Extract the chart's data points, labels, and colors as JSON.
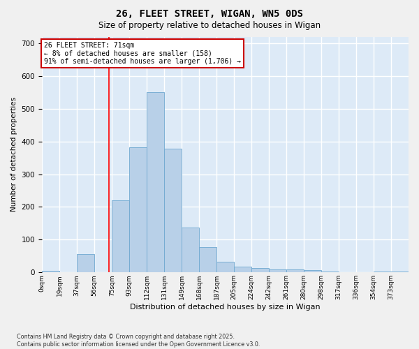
{
  "title1": "26, FLEET STREET, WIGAN, WN5 0DS",
  "title2": "Size of property relative to detached houses in Wigan",
  "xlabel": "Distribution of detached houses by size in Wigan",
  "ylabel": "Number of detached properties",
  "categories": [
    "0sqm",
    "19sqm",
    "37sqm",
    "56sqm",
    "75sqm",
    "93sqm",
    "112sqm",
    "131sqm",
    "149sqm",
    "168sqm",
    "187sqm",
    "205sqm",
    "224sqm",
    "242sqm",
    "261sqm",
    "280sqm",
    "298sqm",
    "317sqm",
    "336sqm",
    "354sqm",
    "373sqm"
  ],
  "values": [
    5,
    0,
    55,
    0,
    220,
    383,
    550,
    378,
    138,
    78,
    33,
    18,
    14,
    10,
    10,
    8,
    3,
    0,
    0,
    3,
    3
  ],
  "bar_color": "#b8d0e8",
  "bar_edge_color": "#6fa8d0",
  "background_color": "#ddeaf7",
  "fig_background_color": "#f0f0f0",
  "grid_color": "#ffffff",
  "red_line_x": 71,
  "bin_width": 18.5,
  "annotation_title": "26 FLEET STREET: 71sqm",
  "annotation_line1": "← 8% of detached houses are smaller (158)",
  "annotation_line2": "91% of semi-detached houses are larger (1,706) →",
  "annotation_box_color": "#cc0000",
  "ylim": [
    0,
    720
  ],
  "yticks": [
    0,
    100,
    200,
    300,
    400,
    500,
    600,
    700
  ],
  "footnote1": "Contains HM Land Registry data © Crown copyright and database right 2025.",
  "footnote2": "Contains public sector information licensed under the Open Government Licence v3.0."
}
